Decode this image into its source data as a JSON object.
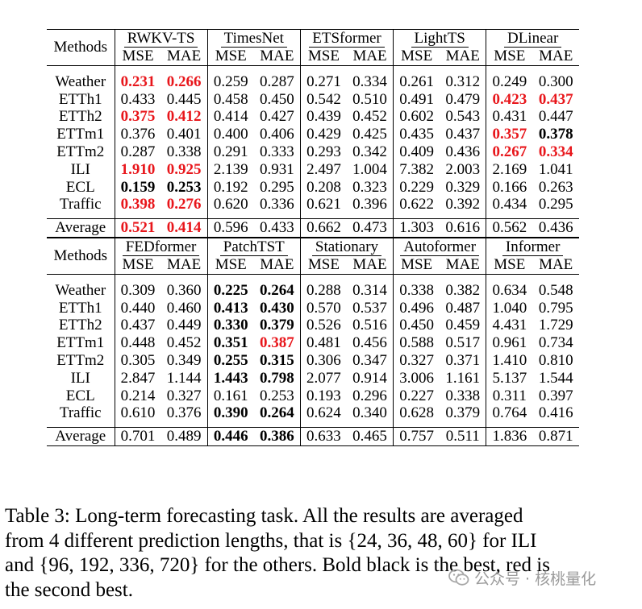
{
  "methods_label": "Methods",
  "metric_labels": [
    "MSE",
    "MAE"
  ],
  "datasets": [
    "Weather",
    "ETTh1",
    "ETTh2",
    "ETTm1",
    "ETTm2",
    "ILI",
    "ECL",
    "Traffic"
  ],
  "average_label": "Average",
  "tables": [
    {
      "models": [
        "RWKV-TS",
        "TimesNet",
        "ETSformer",
        "LightTS",
        "DLinear"
      ],
      "rows": [
        [
          [
            "0.231",
            "s"
          ],
          [
            "0.266",
            "s"
          ],
          [
            "0.259",
            ""
          ],
          [
            "0.287",
            ""
          ],
          [
            "0.271",
            ""
          ],
          [
            "0.334",
            ""
          ],
          [
            "0.261",
            ""
          ],
          [
            "0.312",
            ""
          ],
          [
            "0.249",
            ""
          ],
          [
            "0.300",
            ""
          ]
        ],
        [
          [
            "0.433",
            ""
          ],
          [
            "0.445",
            ""
          ],
          [
            "0.458",
            ""
          ],
          [
            "0.450",
            ""
          ],
          [
            "0.542",
            ""
          ],
          [
            "0.510",
            ""
          ],
          [
            "0.491",
            ""
          ],
          [
            "0.479",
            ""
          ],
          [
            "0.423",
            "s"
          ],
          [
            "0.437",
            "s"
          ]
        ],
        [
          [
            "0.375",
            "s"
          ],
          [
            "0.412",
            "s"
          ],
          [
            "0.414",
            ""
          ],
          [
            "0.427",
            ""
          ],
          [
            "0.439",
            ""
          ],
          [
            "0.452",
            ""
          ],
          [
            "0.602",
            ""
          ],
          [
            "0.543",
            ""
          ],
          [
            "0.431",
            ""
          ],
          [
            "0.447",
            ""
          ]
        ],
        [
          [
            "0.376",
            ""
          ],
          [
            "0.401",
            ""
          ],
          [
            "0.400",
            ""
          ],
          [
            "0.406",
            ""
          ],
          [
            "0.429",
            ""
          ],
          [
            "0.425",
            ""
          ],
          [
            "0.435",
            ""
          ],
          [
            "0.437",
            ""
          ],
          [
            "0.357",
            "s"
          ],
          [
            "0.378",
            "b"
          ]
        ],
        [
          [
            "0.287",
            ""
          ],
          [
            "0.338",
            ""
          ],
          [
            "0.291",
            ""
          ],
          [
            "0.333",
            ""
          ],
          [
            "0.293",
            ""
          ],
          [
            "0.342",
            ""
          ],
          [
            "0.409",
            ""
          ],
          [
            "0.436",
            ""
          ],
          [
            "0.267",
            "s"
          ],
          [
            "0.334",
            "s"
          ]
        ],
        [
          [
            "1.910",
            "s"
          ],
          [
            "0.925",
            "s"
          ],
          [
            "2.139",
            ""
          ],
          [
            "0.931",
            ""
          ],
          [
            "2.497",
            ""
          ],
          [
            "1.004",
            ""
          ],
          [
            "7.382",
            ""
          ],
          [
            "2.003",
            ""
          ],
          [
            "2.169",
            ""
          ],
          [
            "1.041",
            ""
          ]
        ],
        [
          [
            "0.159",
            "b"
          ],
          [
            "0.253",
            "b"
          ],
          [
            "0.192",
            ""
          ],
          [
            "0.295",
            ""
          ],
          [
            "0.208",
            ""
          ],
          [
            "0.323",
            ""
          ],
          [
            "0.229",
            ""
          ],
          [
            "0.329",
            ""
          ],
          [
            "0.166",
            ""
          ],
          [
            "0.263",
            ""
          ]
        ],
        [
          [
            "0.398",
            "s"
          ],
          [
            "0.276",
            "s"
          ],
          [
            "0.620",
            ""
          ],
          [
            "0.336",
            ""
          ],
          [
            "0.621",
            ""
          ],
          [
            "0.396",
            ""
          ],
          [
            "0.622",
            ""
          ],
          [
            "0.392",
            ""
          ],
          [
            "0.434",
            ""
          ],
          [
            "0.295",
            ""
          ]
        ]
      ],
      "average": [
        [
          "0.521",
          "s"
        ],
        [
          "0.414",
          "s"
        ],
        [
          "0.596",
          ""
        ],
        [
          "0.433",
          ""
        ],
        [
          "0.662",
          ""
        ],
        [
          "0.473",
          ""
        ],
        [
          "1.303",
          ""
        ],
        [
          "0.616",
          ""
        ],
        [
          "0.562",
          ""
        ],
        [
          "0.436",
          ""
        ]
      ]
    },
    {
      "models": [
        "FEDformer",
        "PatchTST",
        "Stationary",
        "Autoformer",
        "Informer"
      ],
      "rows": [
        [
          [
            "0.309",
            ""
          ],
          [
            "0.360",
            ""
          ],
          [
            "0.225",
            "b"
          ],
          [
            "0.264",
            "b"
          ],
          [
            "0.288",
            ""
          ],
          [
            "0.314",
            ""
          ],
          [
            "0.338",
            ""
          ],
          [
            "0.382",
            ""
          ],
          [
            "0.634",
            ""
          ],
          [
            "0.548",
            ""
          ]
        ],
        [
          [
            "0.440",
            ""
          ],
          [
            "0.460",
            ""
          ],
          [
            "0.413",
            "b"
          ],
          [
            "0.430",
            "b"
          ],
          [
            "0.570",
            ""
          ],
          [
            "0.537",
            ""
          ],
          [
            "0.496",
            ""
          ],
          [
            "0.487",
            ""
          ],
          [
            "1.040",
            ""
          ],
          [
            "0.795",
            ""
          ]
        ],
        [
          [
            "0.437",
            ""
          ],
          [
            "0.449",
            ""
          ],
          [
            "0.330",
            "b"
          ],
          [
            "0.379",
            "b"
          ],
          [
            "0.526",
            ""
          ],
          [
            "0.516",
            ""
          ],
          [
            "0.450",
            ""
          ],
          [
            "0.459",
            ""
          ],
          [
            "4.431",
            ""
          ],
          [
            "1.729",
            ""
          ]
        ],
        [
          [
            "0.448",
            ""
          ],
          [
            "0.452",
            ""
          ],
          [
            "0.351",
            "b"
          ],
          [
            "0.387",
            "s"
          ],
          [
            "0.481",
            ""
          ],
          [
            "0.456",
            ""
          ],
          [
            "0.588",
            ""
          ],
          [
            "0.517",
            ""
          ],
          [
            "0.961",
            ""
          ],
          [
            "0.734",
            ""
          ]
        ],
        [
          [
            "0.305",
            ""
          ],
          [
            "0.349",
            ""
          ],
          [
            "0.255",
            "b"
          ],
          [
            "0.315",
            "b"
          ],
          [
            "0.306",
            ""
          ],
          [
            "0.347",
            ""
          ],
          [
            "0.327",
            ""
          ],
          [
            "0.371",
            ""
          ],
          [
            "1.410",
            ""
          ],
          [
            "0.810",
            ""
          ]
        ],
        [
          [
            "2.847",
            ""
          ],
          [
            "1.144",
            ""
          ],
          [
            "1.443",
            "b"
          ],
          [
            "0.798",
            "b"
          ],
          [
            "2.077",
            ""
          ],
          [
            "0.914",
            ""
          ],
          [
            "3.006",
            ""
          ],
          [
            "1.161",
            ""
          ],
          [
            "5.137",
            ""
          ],
          [
            "1.544",
            ""
          ]
        ],
        [
          [
            "0.214",
            ""
          ],
          [
            "0.327",
            ""
          ],
          [
            "0.161",
            ""
          ],
          [
            "0.253",
            ""
          ],
          [
            "0.193",
            ""
          ],
          [
            "0.296",
            ""
          ],
          [
            "0.227",
            ""
          ],
          [
            "0.338",
            ""
          ],
          [
            "0.311",
            ""
          ],
          [
            "0.397",
            ""
          ]
        ],
        [
          [
            "0.610",
            ""
          ],
          [
            "0.376",
            ""
          ],
          [
            "0.390",
            "b"
          ],
          [
            "0.264",
            "b"
          ],
          [
            "0.624",
            ""
          ],
          [
            "0.340",
            ""
          ],
          [
            "0.628",
            ""
          ],
          [
            "0.379",
            ""
          ],
          [
            "0.764",
            ""
          ],
          [
            "0.416",
            ""
          ]
        ]
      ],
      "average": [
        [
          "0.701",
          ""
        ],
        [
          "0.489",
          ""
        ],
        [
          "0.446",
          "b"
        ],
        [
          "0.386",
          "b"
        ],
        [
          "0.633",
          ""
        ],
        [
          "0.465",
          ""
        ],
        [
          "0.757",
          ""
        ],
        [
          "0.511",
          ""
        ],
        [
          "1.836",
          ""
        ],
        [
          "0.871",
          ""
        ]
      ]
    }
  ],
  "caption": {
    "line1": "Table 3: Long-term forecasting task.  All the results are averaged",
    "line2": "from 4 different prediction lengths, that is {24, 36, 48, 60} for ILI",
    "line3": "and {96, 192, 336, 720} for the others. Bold black is the best, red is",
    "line4": "the second best."
  },
  "watermark": {
    "text": "公众号 · 核桃量化",
    "icon": "wechat-icon"
  }
}
